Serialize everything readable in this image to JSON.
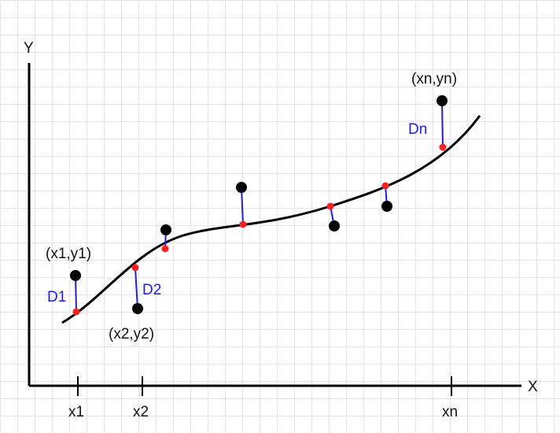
{
  "axes": {
    "x_label": "X",
    "y_label": "Y",
    "axis_color": "#000000"
  },
  "ticks": {
    "x1": "x1",
    "x2": "x2",
    "xn": "xn"
  },
  "points": {
    "p1": "(x1,y1)",
    "p2": "(x2,y2)",
    "pn": "(xn,yn)"
  },
  "distances": {
    "d1": "D1",
    "d2": "D2",
    "dn": "Dn"
  },
  "colors": {
    "curve": "#000000",
    "data_point": "#000000",
    "curve_point": "#ff2020",
    "residual": "#1a1aff",
    "residual_label": "#1a1aff",
    "grid": "#e4e4ec"
  }
}
